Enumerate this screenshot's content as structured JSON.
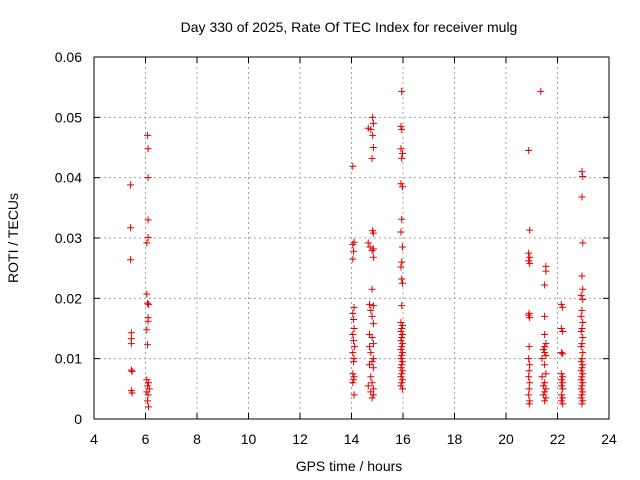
{
  "chart_data": {
    "type": "scatter",
    "title": "Day 330 of 2025, Rate Of TEC Index for receiver mulg",
    "xlabel": "GPS time / hours",
    "ylabel": "ROTI / TECUs",
    "xlim": [
      4,
      24
    ],
    "ylim": [
      0,
      0.06
    ],
    "xticks": [
      "4",
      "6",
      "8",
      "10",
      "12",
      "14",
      "16",
      "18",
      "20",
      "22",
      "24"
    ],
    "yticks": [
      "0",
      "0.01",
      "0.02",
      "0.03",
      "0.04",
      "0.05",
      "0.06"
    ],
    "grid": true,
    "marker": "plus",
    "color": "#e00000",
    "points": [
      [
        5.42,
        0.0388
      ],
      [
        5.42,
        0.0317
      ],
      [
        5.42,
        0.0264
      ],
      [
        5.45,
        0.0143
      ],
      [
        5.45,
        0.0133
      ],
      [
        5.45,
        0.0125
      ],
      [
        5.45,
        0.0081
      ],
      [
        5.48,
        0.0079
      ],
      [
        5.45,
        0.0047
      ],
      [
        5.48,
        0.0043
      ],
      [
        6.08,
        0.047
      ],
      [
        6.1,
        0.0448
      ],
      [
        6.1,
        0.04
      ],
      [
        6.1,
        0.033
      ],
      [
        6.1,
        0.0301
      ],
      [
        6.05,
        0.0292
      ],
      [
        6.05,
        0.0207
      ],
      [
        6.08,
        0.0192
      ],
      [
        6.12,
        0.019
      ],
      [
        6.1,
        0.0168
      ],
      [
        6.1,
        0.0162
      ],
      [
        6.05,
        0.0148
      ],
      [
        6.08,
        0.0123
      ],
      [
        6.05,
        0.0065
      ],
      [
        6.12,
        0.006
      ],
      [
        6.08,
        0.0055
      ],
      [
        6.15,
        0.005
      ],
      [
        6.05,
        0.0045
      ],
      [
        6.1,
        0.004
      ],
      [
        6.08,
        0.003
      ],
      [
        6.12,
        0.002
      ],
      [
        14.05,
        0.0419
      ],
      [
        14.1,
        0.0293
      ],
      [
        14.05,
        0.0289
      ],
      [
        14.08,
        0.0278
      ],
      [
        14.05,
        0.0265
      ],
      [
        14.1,
        0.0185
      ],
      [
        14.05,
        0.0175
      ],
      [
        14.08,
        0.0165
      ],
      [
        14.1,
        0.015
      ],
      [
        14.05,
        0.014
      ],
      [
        14.08,
        0.013
      ],
      [
        14.12,
        0.012
      ],
      [
        14.05,
        0.011
      ],
      [
        14.1,
        0.01
      ],
      [
        14.08,
        0.0095
      ],
      [
        14.05,
        0.0075
      ],
      [
        14.1,
        0.007
      ],
      [
        14.08,
        0.0065
      ],
      [
        14.05,
        0.006
      ],
      [
        14.1,
        0.004
      ],
      [
        14.65,
        0.0482
      ],
      [
        14.75,
        0.048
      ],
      [
        14.82,
        0.05
      ],
      [
        14.85,
        0.049
      ],
      [
        14.82,
        0.047
      ],
      [
        14.85,
        0.045
      ],
      [
        14.8,
        0.0432
      ],
      [
        14.82,
        0.0312
      ],
      [
        14.85,
        0.0308
      ],
      [
        14.65,
        0.0292
      ],
      [
        14.72,
        0.0285
      ],
      [
        14.85,
        0.0282
      ],
      [
        14.8,
        0.0279
      ],
      [
        14.85,
        0.0268
      ],
      [
        14.8,
        0.0215
      ],
      [
        14.7,
        0.019
      ],
      [
        14.85,
        0.0188
      ],
      [
        14.75,
        0.018
      ],
      [
        14.8,
        0.017
      ],
      [
        14.85,
        0.0158
      ],
      [
        14.7,
        0.014
      ],
      [
        14.8,
        0.0135
      ],
      [
        14.85,
        0.0125
      ],
      [
        14.7,
        0.012
      ],
      [
        14.75,
        0.011
      ],
      [
        14.85,
        0.01
      ],
      [
        14.8,
        0.0095
      ],
      [
        14.7,
        0.009
      ],
      [
        14.85,
        0.0085
      ],
      [
        14.75,
        0.007
      ],
      [
        14.8,
        0.006
      ],
      [
        14.65,
        0.0055
      ],
      [
        14.85,
        0.005
      ],
      [
        14.75,
        0.0045
      ],
      [
        14.85,
        0.004
      ],
      [
        14.8,
        0.0035
      ],
      [
        15.95,
        0.0543
      ],
      [
        15.92,
        0.0485
      ],
      [
        15.95,
        0.048
      ],
      [
        15.92,
        0.0448
      ],
      [
        15.98,
        0.044
      ],
      [
        15.95,
        0.0432
      ],
      [
        15.92,
        0.039
      ],
      [
        15.98,
        0.0385
      ],
      [
        15.95,
        0.0331
      ],
      [
        15.92,
        0.031
      ],
      [
        15.98,
        0.0285
      ],
      [
        15.95,
        0.026
      ],
      [
        15.92,
        0.0252
      ],
      [
        15.95,
        0.0232
      ],
      [
        15.98,
        0.0225
      ],
      [
        15.95,
        0.0188
      ],
      [
        15.92,
        0.016
      ],
      [
        15.98,
        0.0155
      ],
      [
        15.95,
        0.015
      ],
      [
        15.92,
        0.0145
      ],
      [
        15.98,
        0.014
      ],
      [
        15.95,
        0.0135
      ],
      [
        15.92,
        0.013
      ],
      [
        15.98,
        0.0125
      ],
      [
        15.95,
        0.012
      ],
      [
        15.92,
        0.0115
      ],
      [
        15.98,
        0.011
      ],
      [
        15.95,
        0.0105
      ],
      [
        15.92,
        0.01
      ],
      [
        15.98,
        0.0095
      ],
      [
        15.95,
        0.009
      ],
      [
        15.92,
        0.0085
      ],
      [
        15.98,
        0.008
      ],
      [
        15.95,
        0.0075
      ],
      [
        15.92,
        0.007
      ],
      [
        15.98,
        0.0065
      ],
      [
        15.95,
        0.006
      ],
      [
        15.92,
        0.0055
      ],
      [
        15.98,
        0.005
      ],
      [
        20.88,
        0.0445
      ],
      [
        20.92,
        0.0313
      ],
      [
        20.88,
        0.0275
      ],
      [
        20.92,
        0.0268
      ],
      [
        20.88,
        0.0262
      ],
      [
        20.92,
        0.0258
      ],
      [
        20.9,
        0.0175
      ],
      [
        20.88,
        0.0172
      ],
      [
        20.92,
        0.0168
      ],
      [
        20.9,
        0.012
      ],
      [
        20.88,
        0.01
      ],
      [
        20.92,
        0.009
      ],
      [
        20.9,
        0.008
      ],
      [
        20.88,
        0.007
      ],
      [
        20.92,
        0.006
      ],
      [
        20.9,
        0.005
      ],
      [
        20.88,
        0.004
      ],
      [
        20.92,
        0.003
      ],
      [
        20.9,
        0.0025
      ],
      [
        21.35,
        0.0543
      ],
      [
        21.55,
        0.0253
      ],
      [
        21.55,
        0.0245
      ],
      [
        21.5,
        0.0222
      ],
      [
        21.5,
        0.017
      ],
      [
        21.5,
        0.014
      ],
      [
        21.55,
        0.0125
      ],
      [
        21.5,
        0.012
      ],
      [
        21.45,
        0.0115
      ],
      [
        21.5,
        0.011
      ],
      [
        21.55,
        0.0105
      ],
      [
        21.4,
        0.01
      ],
      [
        21.5,
        0.009
      ],
      [
        21.55,
        0.0075
      ],
      [
        21.4,
        0.007
      ],
      [
        21.5,
        0.006
      ],
      [
        21.45,
        0.0055
      ],
      [
        21.55,
        0.005
      ],
      [
        21.5,
        0.0045
      ],
      [
        21.45,
        0.004
      ],
      [
        21.55,
        0.0035
      ],
      [
        21.5,
        0.003
      ],
      [
        22.15,
        0.019
      ],
      [
        22.2,
        0.0185
      ],
      [
        22.15,
        0.015
      ],
      [
        22.2,
        0.0145
      ],
      [
        22.15,
        0.011
      ],
      [
        22.2,
        0.0108
      ],
      [
        22.15,
        0.0075
      ],
      [
        22.2,
        0.007
      ],
      [
        22.15,
        0.0065
      ],
      [
        22.2,
        0.006
      ],
      [
        22.15,
        0.0055
      ],
      [
        22.2,
        0.005
      ],
      [
        22.15,
        0.004
      ],
      [
        22.2,
        0.0035
      ],
      [
        22.15,
        0.003
      ],
      [
        22.2,
        0.0025
      ],
      [
        22.95,
        0.041
      ],
      [
        22.98,
        0.0402
      ],
      [
        22.95,
        0.0368
      ],
      [
        22.98,
        0.0292
      ],
      [
        22.95,
        0.0237
      ],
      [
        22.98,
        0.0215
      ],
      [
        22.92,
        0.0205
      ],
      [
        22.98,
        0.0198
      ],
      [
        22.95,
        0.018
      ],
      [
        22.92,
        0.017
      ],
      [
        22.98,
        0.016
      ],
      [
        22.95,
        0.015
      ],
      [
        22.92,
        0.0145
      ],
      [
        22.98,
        0.0135
      ],
      [
        22.95,
        0.0125
      ],
      [
        22.92,
        0.012
      ],
      [
        22.98,
        0.011
      ],
      [
        22.95,
        0.01
      ],
      [
        22.92,
        0.0095
      ],
      [
        22.98,
        0.009
      ],
      [
        22.95,
        0.0085
      ],
      [
        22.92,
        0.008
      ],
      [
        22.98,
        0.0075
      ],
      [
        22.95,
        0.007
      ],
      [
        22.92,
        0.0065
      ],
      [
        22.98,
        0.006
      ],
      [
        22.95,
        0.0055
      ],
      [
        22.92,
        0.005
      ],
      [
        22.98,
        0.0045
      ],
      [
        22.95,
        0.004
      ],
      [
        22.92,
        0.0035
      ],
      [
        22.98,
        0.003
      ],
      [
        22.95,
        0.0025
      ]
    ]
  }
}
